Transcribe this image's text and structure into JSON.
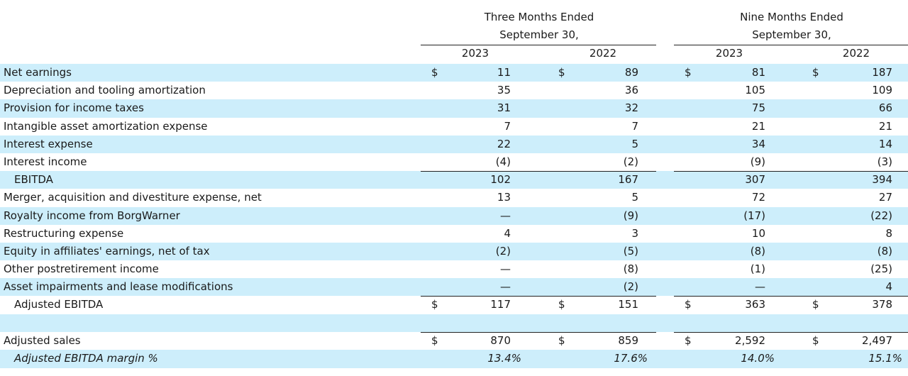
{
  "header": {
    "three_months_line1": "Three Months Ended",
    "three_months_line2": "September 30,",
    "nine_months_line1": "Nine Months Ended",
    "nine_months_line2": "September 30,",
    "years": [
      "2023",
      "2022",
      "2023",
      "2022"
    ]
  },
  "currency_symbol": "$",
  "rows": [
    {
      "label": "Net earnings",
      "values": [
        "11",
        "89",
        "81",
        "187"
      ],
      "dollar": true,
      "shaded": true
    },
    {
      "label": "Depreciation and tooling amortization",
      "values": [
        "35",
        "36",
        "105",
        "109"
      ]
    },
    {
      "label": "Provision for income taxes",
      "values": [
        "31",
        "32",
        "75",
        "66"
      ],
      "shaded": true
    },
    {
      "label": "Intangible asset amortization expense",
      "values": [
        "7",
        "7",
        "21",
        "21"
      ]
    },
    {
      "label": "Interest expense",
      "values": [
        "22",
        "5",
        "34",
        "14"
      ],
      "shaded": true
    },
    {
      "label": "Interest income",
      "values": [
        "(4)",
        "(2)",
        "(9)",
        "(3)"
      ]
    },
    {
      "label": "EBITDA",
      "values": [
        "102",
        "167",
        "307",
        "394"
      ],
      "shaded": true,
      "indent": true,
      "rule_above": true
    },
    {
      "label": "Merger, acquisition and divestiture expense, net",
      "values": [
        "13",
        "5",
        "72",
        "27"
      ]
    },
    {
      "label": "Royalty income from BorgWarner",
      "values": [
        "—",
        "(9)",
        "(17)",
        "(22)"
      ],
      "shaded": true
    },
    {
      "label": "Restructuring expense",
      "values": [
        "4",
        "3",
        "10",
        "8"
      ]
    },
    {
      "label": "Equity in affiliates' earnings, net of tax",
      "values": [
        "(2)",
        "(5)",
        "(8)",
        "(8)"
      ],
      "shaded": true
    },
    {
      "label": "Other postretirement income",
      "values": [
        "—",
        "(8)",
        "(1)",
        "(25)"
      ]
    },
    {
      "label": "Asset impairments and lease modifications",
      "values": [
        "—",
        "(2)",
        "—",
        "4"
      ],
      "shaded": true
    },
    {
      "label": "Adjusted EBITDA",
      "values": [
        "117",
        "151",
        "363",
        "378"
      ],
      "indent": true,
      "dollar": true,
      "rule_above": true
    },
    {
      "label": "",
      "values": [
        "",
        "",
        "",
        ""
      ],
      "shaded": true
    },
    {
      "label": "Adjusted sales",
      "values": [
        "870",
        "859",
        "2,592",
        "2,497"
      ],
      "dollar": true,
      "rule_above": true
    },
    {
      "label": "Adjusted EBITDA margin %",
      "values": [
        "13.4%",
        "17.6%",
        "14.0%",
        "15.1%"
      ],
      "shaded": true,
      "italic": true,
      "indent": true,
      "pct": true
    }
  ]
}
